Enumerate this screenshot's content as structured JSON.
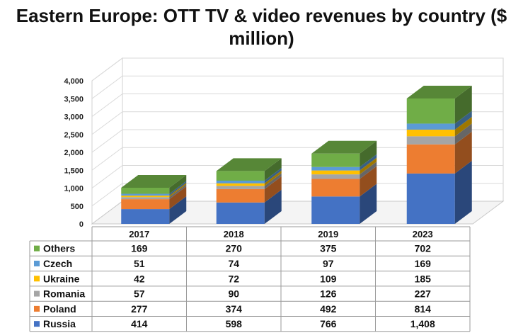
{
  "chart_data": {
    "type": "bar",
    "stacked": true,
    "three_d": true,
    "title": "Eastern Europe: OTT TV & video revenues by country ($ million)",
    "categories": [
      "2017",
      "2018",
      "2019",
      "2023"
    ],
    "ylim": [
      0,
      4000
    ],
    "yticks": [
      "0",
      "500",
      "1,000",
      "1,500",
      "2,000",
      "2,500",
      "3,000",
      "3,500",
      "4,000"
    ],
    "grid": true,
    "legend": "data-table",
    "series": [
      {
        "name": "Russia",
        "color": "#4472C4",
        "values": [
          414,
          598,
          766,
          1408
        ],
        "labels": [
          "414",
          "598",
          "766",
          "1,408"
        ]
      },
      {
        "name": "Poland",
        "color": "#ED7D31",
        "values": [
          277,
          374,
          492,
          814
        ],
        "labels": [
          "277",
          "374",
          "492",
          "814"
        ]
      },
      {
        "name": "Romania",
        "color": "#A5A5A5",
        "values": [
          57,
          90,
          126,
          227
        ],
        "labels": [
          "57",
          "90",
          "126",
          "227"
        ]
      },
      {
        "name": "Ukraine",
        "color": "#FFC000",
        "values": [
          42,
          72,
          109,
          185
        ],
        "labels": [
          "42",
          "72",
          "109",
          "185"
        ]
      },
      {
        "name": "Czech",
        "color": "#5B9BD5",
        "values": [
          51,
          74,
          97,
          169
        ],
        "labels": [
          "51",
          "74",
          "97",
          "169"
        ]
      },
      {
        "name": "Others",
        "color": "#70AD47",
        "values": [
          169,
          270,
          375,
          702
        ],
        "labels": [
          "169",
          "270",
          "375",
          "702"
        ]
      }
    ]
  }
}
